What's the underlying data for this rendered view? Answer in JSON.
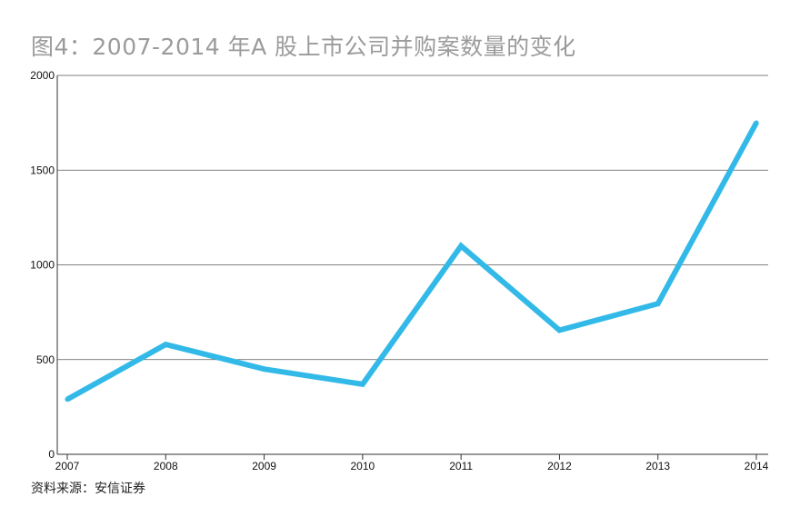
{
  "title": "图4：2007-2014 年A 股上市公司并购案数量的变化",
  "source": "资料来源：安信证券",
  "colors": {
    "line": "#33b9e8",
    "grid": "#555555",
    "axis": "#333333",
    "title": "#9b9b9b"
  },
  "chart_data": {
    "type": "line",
    "title": "图4：2007-2014 年A 股上市公司并购案数量的变化",
    "xlabel": "",
    "ylabel": "",
    "categories": [
      "2007",
      "2008",
      "2009",
      "2010",
      "2011",
      "2012",
      "2013",
      "2014"
    ],
    "series": [
      {
        "values": [
          290,
          580,
          450,
          370,
          1100,
          655,
          795,
          1750
        ]
      }
    ],
    "ylim": [
      0,
      2000
    ],
    "yticks": [
      0,
      500,
      1000,
      1500,
      2000
    ],
    "grid": true,
    "legend": "none"
  }
}
